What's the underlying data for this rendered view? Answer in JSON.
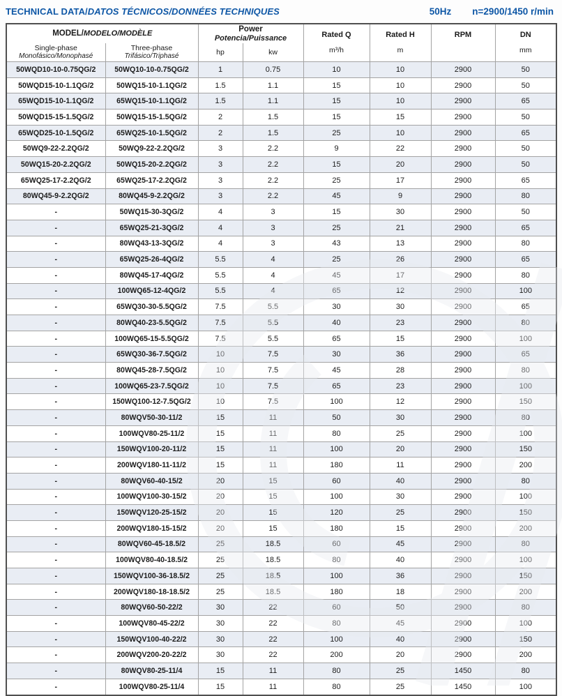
{
  "header": {
    "title_en": "TECHNICAL DATA/",
    "title_i18n": "DATOS TÉCNICOS/DONNÉES TECHNIQUES",
    "frequency": "50Hz",
    "speed": "n=2900/1450 r/min"
  },
  "colors": {
    "accent_blue": "#0e57a6",
    "row_stripe": "#e9edf4",
    "border_inner": "#a3a3a3",
    "border_outer": "#4f4f4f"
  },
  "table": {
    "column_keys": [
      "single-phase-model",
      "three-phase-model",
      "power-hp",
      "power-kw",
      "rated-q",
      "rated-h",
      "rpm",
      "dn"
    ],
    "header": {
      "model_group_en": "MODEL/",
      "model_group_i18n": "MODELO/MODÈLE",
      "single_phase_en": "Single-phase",
      "single_phase_i18n": "Monofásico/Monophasé",
      "three_phase_en": "Three-phase",
      "three_phase_i18n": "Trifásico/Triphasé",
      "power_group_en": "Power",
      "power_group_i18n": "Potencia/Puissance",
      "hp_label": "hp",
      "kw_label": "kw",
      "rated_q_label": "Rated Q",
      "rated_q_unit": "m³/h",
      "rated_h_label": "Rated H",
      "rated_h_unit": "m",
      "rpm_label": "RPM",
      "dn_label": "DN",
      "dn_unit": "mm"
    },
    "rows": [
      [
        "50WQD10-10-0.75QG/2",
        "50WQ10-10-0.75QG/2",
        "1",
        "0.75",
        "10",
        "10",
        "2900",
        "50"
      ],
      [
        "50WQD15-10-1.1QG/2",
        "50WQ15-10-1.1QG/2",
        "1.5",
        "1.1",
        "15",
        "10",
        "2900",
        "50"
      ],
      [
        "65WQD15-10-1.1QG/2",
        "65WQ15-10-1.1QG/2",
        "1.5",
        "1.1",
        "15",
        "10",
        "2900",
        "65"
      ],
      [
        "50WQD15-15-1.5QG/2",
        "50WQ15-15-1.5QG/2",
        "2",
        "1.5",
        "15",
        "15",
        "2900",
        "50"
      ],
      [
        "65WQD25-10-1.5QG/2",
        "65WQ25-10-1.5QG/2",
        "2",
        "1.5",
        "25",
        "10",
        "2900",
        "65"
      ],
      [
        "50WQ9-22-2.2QG/2",
        "50WQ9-22-2.2QG/2",
        "3",
        "2.2",
        "9",
        "22",
        "2900",
        "50"
      ],
      [
        "50WQ15-20-2.2QG/2",
        "50WQ15-20-2.2QG/2",
        "3",
        "2.2",
        "15",
        "20",
        "2900",
        "50"
      ],
      [
        "65WQ25-17-2.2QG/2",
        "65WQ25-17-2.2QG/2",
        "3",
        "2.2",
        "25",
        "17",
        "2900",
        "65"
      ],
      [
        "80WQ45-9-2.2QG/2",
        "80WQ45-9-2.2QG/2",
        "3",
        "2.2",
        "45",
        "9",
        "2900",
        "80"
      ],
      [
        "-",
        "50WQ15-30-3QG/2",
        "4",
        "3",
        "15",
        "30",
        "2900",
        "50"
      ],
      [
        "-",
        "65WQ25-21-3QG/2",
        "4",
        "3",
        "25",
        "21",
        "2900",
        "65"
      ],
      [
        "-",
        "80WQ43-13-3QG/2",
        "4",
        "3",
        "43",
        "13",
        "2900",
        "80"
      ],
      [
        "-",
        "65WQ25-26-4QG/2",
        "5.5",
        "4",
        "25",
        "26",
        "2900",
        "65"
      ],
      [
        "-",
        "80WQ45-17-4QG/2",
        "5.5",
        "4",
        "45",
        "17",
        "2900",
        "80"
      ],
      [
        "-",
        "100WQ65-12-4QG/2",
        "5.5",
        "4",
        "65",
        "12",
        "2900",
        "100"
      ],
      [
        "-",
        "65WQ30-30-5.5QG/2",
        "7.5",
        "5.5",
        "30",
        "30",
        "2900",
        "65"
      ],
      [
        "-",
        "80WQ40-23-5.5QG/2",
        "7.5",
        "5.5",
        "40",
        "23",
        "2900",
        "80"
      ],
      [
        "-",
        "100WQ65-15-5.5QG/2",
        "7.5",
        "5.5",
        "65",
        "15",
        "2900",
        "100"
      ],
      [
        "-",
        "65WQ30-36-7.5QG/2",
        "10",
        "7.5",
        "30",
        "36",
        "2900",
        "65"
      ],
      [
        "-",
        "80WQ45-28-7.5QG/2",
        "10",
        "7.5",
        "45",
        "28",
        "2900",
        "80"
      ],
      [
        "-",
        "100WQ65-23-7.5QG/2",
        "10",
        "7.5",
        "65",
        "23",
        "2900",
        "100"
      ],
      [
        "-",
        "150WQ100-12-7.5QG/2",
        "10",
        "7.5",
        "100",
        "12",
        "2900",
        "150"
      ],
      [
        "-",
        "80WQV50-30-11/2",
        "15",
        "11",
        "50",
        "30",
        "2900",
        "80"
      ],
      [
        "-",
        "100WQV80-25-11/2",
        "15",
        "11",
        "80",
        "25",
        "2900",
        "100"
      ],
      [
        "-",
        "150WQV100-20-11/2",
        "15",
        "11",
        "100",
        "20",
        "2900",
        "150"
      ],
      [
        "-",
        "200WQV180-11-11/2",
        "15",
        "11",
        "180",
        "11",
        "2900",
        "200"
      ],
      [
        "-",
        "80WQV60-40-15/2",
        "20",
        "15",
        "60",
        "40",
        "2900",
        "80"
      ],
      [
        "-",
        "100WQV100-30-15/2",
        "20",
        "15",
        "100",
        "30",
        "2900",
        "100"
      ],
      [
        "-",
        "150WQV120-25-15/2",
        "20",
        "15",
        "120",
        "25",
        "2900",
        "150"
      ],
      [
        "-",
        "200WQV180-15-15/2",
        "20",
        "15",
        "180",
        "15",
        "2900",
        "200"
      ],
      [
        "-",
        "80WQV60-45-18.5/2",
        "25",
        "18.5",
        "60",
        "45",
        "2900",
        "80"
      ],
      [
        "-",
        "100WQV80-40-18.5/2",
        "25",
        "18.5",
        "80",
        "40",
        "2900",
        "100"
      ],
      [
        "-",
        "150WQV100-36-18.5/2",
        "25",
        "18.5",
        "100",
        "36",
        "2900",
        "150"
      ],
      [
        "-",
        "200WQV180-18-18.5/2",
        "25",
        "18.5",
        "180",
        "18",
        "2900",
        "200"
      ],
      [
        "-",
        "80WQV60-50-22/2",
        "30",
        "22",
        "60",
        "50",
        "2900",
        "80"
      ],
      [
        "-",
        "100WQV80-45-22/2",
        "30",
        "22",
        "80",
        "45",
        "2900",
        "100"
      ],
      [
        "-",
        "150WQV100-40-22/2",
        "30",
        "22",
        "100",
        "40",
        "2900",
        "150"
      ],
      [
        "-",
        "200WQV200-20-22/2",
        "30",
        "22",
        "200",
        "20",
        "2900",
        "200"
      ],
      [
        "-",
        "80WQV80-25-11/4",
        "15",
        "11",
        "80",
        "25",
        "1450",
        "80"
      ],
      [
        "-",
        "100WQV80-25-11/4",
        "15",
        "11",
        "80",
        "25",
        "1450",
        "100"
      ]
    ]
  }
}
